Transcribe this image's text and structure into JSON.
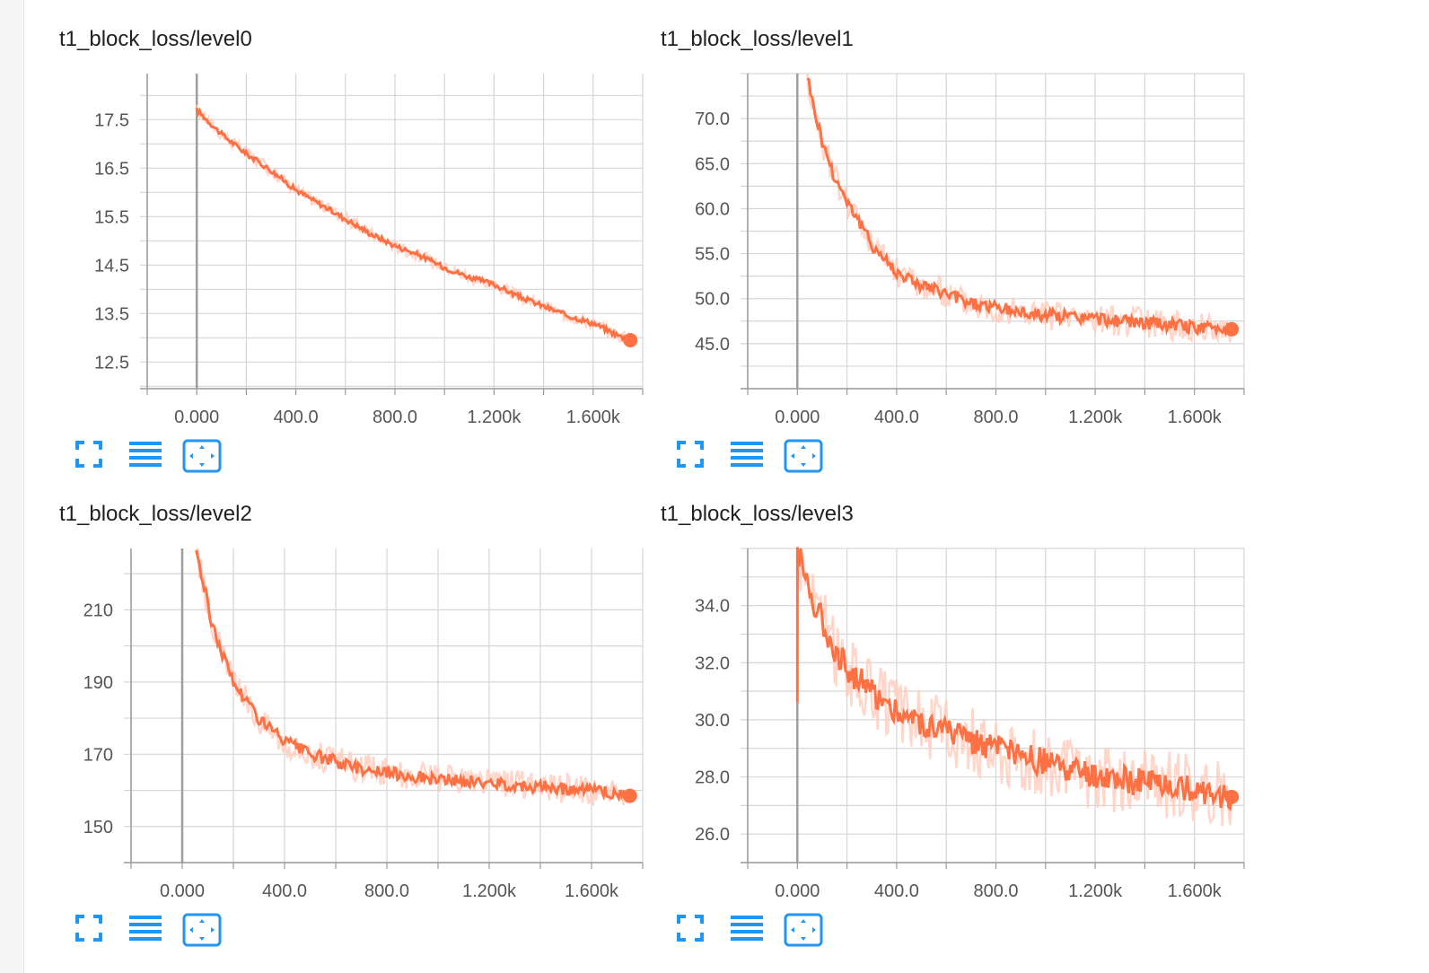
{
  "colors": {
    "line": "#ff7043",
    "line_raw": "#ffccbc",
    "grid": "#d6d6d6",
    "axis": "#999999",
    "zero_line": "#9e9e9e",
    "icon": "#2196f3"
  },
  "toolbar_icons": [
    "fit-fullscreen-icon",
    "data-list-icon",
    "fit-domain-icon"
  ],
  "chart_data": [
    {
      "type": "line",
      "title": "t1_block_loss/level0",
      "xlabel": "",
      "ylabel": "",
      "x_ticks": [
        "0.000",
        "400.0",
        "800.0",
        "1.200k",
        "1.600k"
      ],
      "y_ticks": [
        "17.5",
        "16.5",
        "15.5",
        "14.5",
        "13.5",
        "12.5"
      ],
      "xlim": [
        -200,
        1800
      ],
      "ylim": [
        11.95,
        18.45
      ],
      "grid": true,
      "series": [
        {
          "x": [
            0,
            100,
            200,
            300,
            400,
            500,
            600,
            700,
            800,
            900,
            1000,
            1100,
            1200,
            1300,
            1400,
            1500,
            1600,
            1700,
            1750
          ],
          "values": [
            17.7,
            17.2,
            16.8,
            16.45,
            16.05,
            15.75,
            15.45,
            15.15,
            14.9,
            14.7,
            14.45,
            14.25,
            14.1,
            13.85,
            13.65,
            13.45,
            13.3,
            13.05,
            12.95
          ]
        }
      ]
    },
    {
      "type": "line",
      "title": "t1_block_loss/level1",
      "xlabel": "",
      "ylabel": "",
      "x_ticks": [
        "0.000",
        "400.0",
        "800.0",
        "1.200k",
        "1.600k"
      ],
      "y_ticks": [
        "70.0",
        "65.0",
        "60.0",
        "55.0",
        "50.0",
        "45.0"
      ],
      "xlim": [
        -200,
        1800
      ],
      "ylim": [
        40,
        75
      ],
      "grid": true,
      "series": [
        {
          "x": [
            40,
            60,
            100,
            150,
            200,
            300,
            400,
            500,
            600,
            700,
            800,
            900,
            1000,
            1100,
            1200,
            1300,
            1400,
            1500,
            1600,
            1700,
            1750
          ],
          "values": [
            75,
            72,
            67.5,
            63.5,
            61,
            56,
            53,
            51.5,
            50.5,
            49.5,
            49,
            48.5,
            48.2,
            48,
            47.8,
            47.5,
            47.3,
            47.1,
            46.8,
            46.7,
            46.6
          ]
        }
      ]
    },
    {
      "type": "line",
      "title": "t1_block_loss/level2",
      "xlabel": "",
      "ylabel": "",
      "x_ticks": [
        "0.000",
        "400.0",
        "800.0",
        "1.200k",
        "1.600k"
      ],
      "y_ticks": [
        "210",
        "190",
        "170",
        "150"
      ],
      "xlim": [
        -200,
        1800
      ],
      "ylim": [
        140,
        227
      ],
      "grid": true,
      "series": [
        {
          "x": [
            55,
            80,
            120,
            200,
            300,
            400,
            500,
            600,
            700,
            800,
            900,
            1000,
            1100,
            1200,
            1300,
            1400,
            1500,
            1600,
            1700,
            1750
          ],
          "values": [
            227,
            218,
            205,
            190,
            180,
            173.5,
            170,
            168,
            166,
            165,
            164,
            163,
            162.5,
            162,
            161.5,
            161,
            160.5,
            160,
            159,
            158.5
          ]
        }
      ]
    },
    {
      "type": "line",
      "title": "t1_block_loss/level3",
      "xlabel": "",
      "ylabel": "",
      "x_ticks": [
        "0.000",
        "400.0",
        "800.0",
        "1.200k",
        "1.600k"
      ],
      "y_ticks": [
        "34.0",
        "32.0",
        "30.0",
        "28.0",
        "26.0"
      ],
      "xlim": [
        -200,
        1800
      ],
      "ylim": [
        25,
        36
      ],
      "grid": true,
      "series": [
        {
          "x": [
            0,
            0.5,
            1,
            50,
            100,
            150,
            200,
            300,
            400,
            500,
            600,
            700,
            800,
            900,
            1000,
            1100,
            1200,
            1300,
            1400,
            1500,
            1600,
            1700,
            1750
          ],
          "values": [
            30.6,
            36,
            36,
            34.5,
            33.5,
            32.5,
            31.8,
            31,
            30.3,
            29.9,
            29.6,
            29.3,
            29,
            28.7,
            28.5,
            28.2,
            28,
            27.9,
            27.8,
            27.7,
            27.6,
            27.4,
            27.3
          ]
        }
      ]
    }
  ]
}
